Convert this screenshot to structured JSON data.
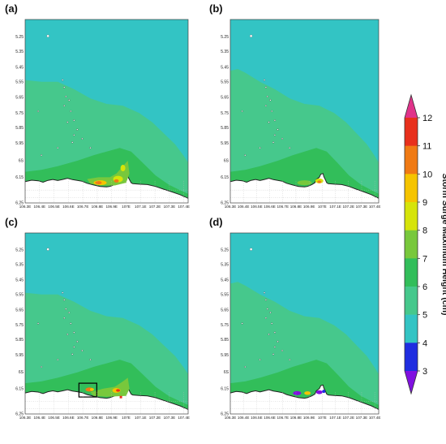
{
  "panels": [
    {
      "letter": "(a)"
    },
    {
      "letter": "(b)"
    },
    {
      "letter": "(c)"
    },
    {
      "letter": "(d)"
    }
  ],
  "lat_labels": [
    "5.25",
    "5.35",
    "5.45",
    "5.55",
    "5.65",
    "5.75",
    "5.85",
    "5.95",
    "6S",
    "6.15",
    "6.25"
  ],
  "lon_labels": [
    "106.3E",
    "106.4E",
    "106.5E",
    "106.6E",
    "106.7E",
    "106.8E",
    "106.9E",
    "107E",
    "107.1E",
    "107.2E",
    "107.3E",
    "107.4E"
  ],
  "colorbar": {
    "title": "Storm Surge Maximum Height (cm)",
    "ticks": [
      "12",
      "11",
      "10",
      "9",
      "8",
      "7",
      "6",
      "5",
      "4",
      "3"
    ],
    "colors": [
      "#e0338a",
      "#e8301c",
      "#f07a14",
      "#f5c400",
      "#d6e40a",
      "#78c83c",
      "#32be5a",
      "#46c88c",
      "#33c4c4",
      "#1f2de0",
      "#8010e0"
    ]
  },
  "colors": {
    "sea_background": "#33c4c4",
    "level6": "#46c88c",
    "level7": "#32be5a",
    "level8": "#78c83c",
    "level9": "#d6e40a",
    "level10": "#f5c400",
    "level11": "#f07a14",
    "level12": "#e8301c",
    "level4": "#1f2de0",
    "level3": "#8010e0",
    "land": "#ffffff",
    "coast": "#222222"
  }
}
